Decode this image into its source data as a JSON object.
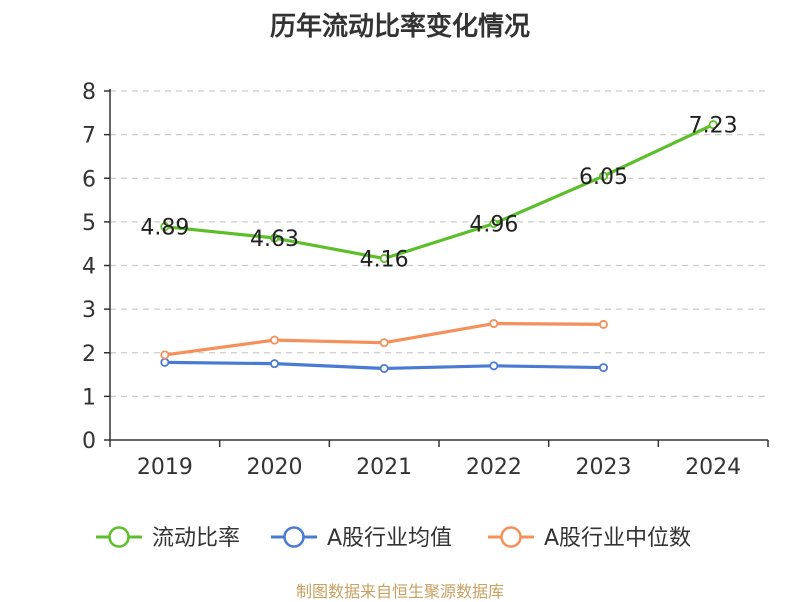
{
  "chart_data": {
    "type": "line",
    "title": "历年流动比率变化情况",
    "xlabel": "",
    "ylabel": "",
    "categories": [
      "2019",
      "2020",
      "2021",
      "2022",
      "2023",
      "2024"
    ],
    "ylim": [
      0,
      8
    ],
    "yticks": [
      0,
      1,
      2,
      3,
      4,
      5,
      6,
      7,
      8
    ],
    "grid": true,
    "legend_position": "bottom",
    "series": [
      {
        "name": "流动比率",
        "color": "#5cbf2a",
        "values": [
          4.89,
          4.63,
          4.16,
          4.96,
          6.05,
          7.23
        ],
        "show_labels": true
      },
      {
        "name": "A股行业均值",
        "color": "#4a7bd4",
        "values": [
          1.78,
          1.75,
          1.64,
          1.7,
          1.66,
          null
        ],
        "show_labels": false
      },
      {
        "name": "A股行业中位数",
        "color": "#f5905a",
        "values": [
          1.95,
          2.29,
          2.23,
          2.67,
          2.65,
          null
        ],
        "show_labels": false
      }
    ]
  },
  "footer": {
    "source": "制图数据来自恒生聚源数据库"
  }
}
